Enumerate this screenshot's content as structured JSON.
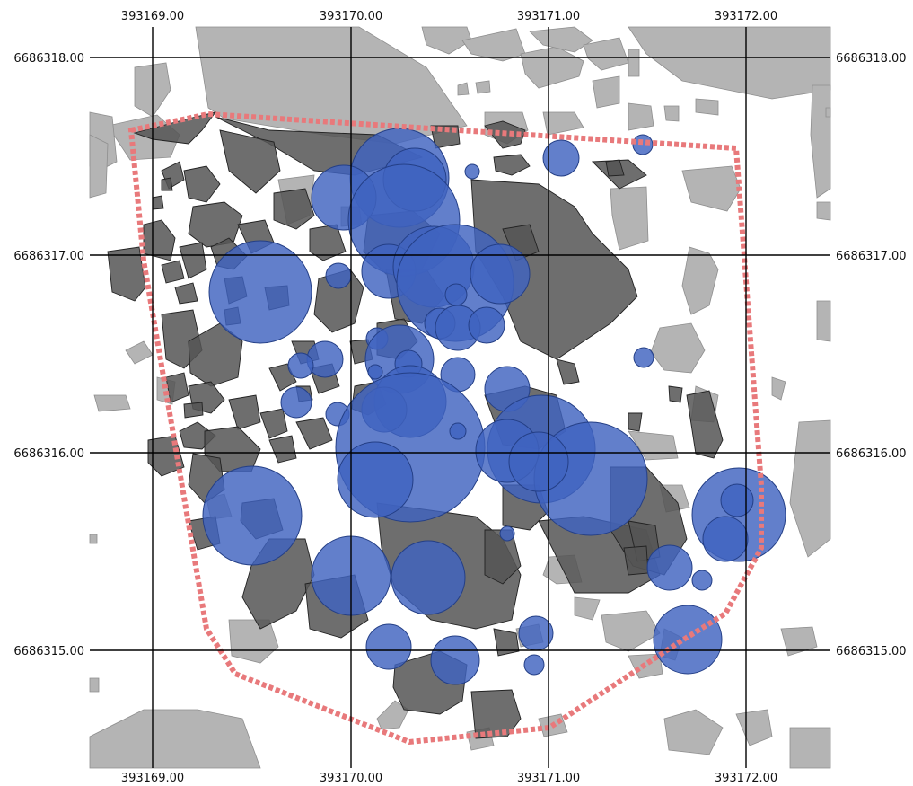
{
  "map": {
    "colors": {
      "background": "#ffffff",
      "light_stone": "#b4b4b4",
      "light_stone_edge": "#8e8e8e",
      "dark_stone": "#555555",
      "dark_stone_edge": "#222222",
      "circle_fill": "#3f63c0",
      "circle_edge": "#243f86",
      "boundary": "#e8797b",
      "grid": "#000000"
    },
    "grid": {
      "x_labels": [
        "393169.00",
        "393170.00",
        "393171.00",
        "393172.00"
      ],
      "y_labels": [
        "6686318.00",
        "6686317.00",
        "6686316.00",
        "6686315.00"
      ]
    },
    "boundary_style": "dashed",
    "layers": [
      "light stones",
      "dark stones",
      "blue circles",
      "boundary polygon"
    ]
  }
}
